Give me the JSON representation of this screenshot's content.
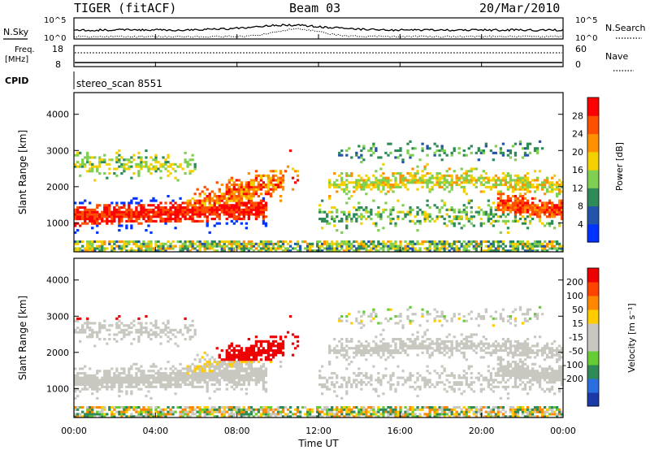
{
  "header": {
    "station": "TIGER (fitACF)",
    "beam": "Beam 03",
    "date": "20/Mar/2010"
  },
  "panels": {
    "nsky": {
      "left_label": "N.Sky",
      "right_label": "N.Search",
      "tick_top": "10^5",
      "tick_bottom": "10^0",
      "right_tick_top": "10^5",
      "right_tick_bottom": "10^0"
    },
    "freq": {
      "left_label_1": "Freq.",
      "left_label_2": "[MHz]",
      "right_label": "Nave",
      "left_tick_top": "18",
      "left_tick_bottom": "8",
      "right_tick_top": "60",
      "right_tick_bottom": "0"
    },
    "cpid": {
      "label": "CPID",
      "text": "stereo_scan 8551"
    }
  },
  "chart_data": [
    {
      "type": "heatmap",
      "quantity": "power",
      "ylabel": "Slant Range [km]",
      "ylim": [
        200,
        4600
      ],
      "yticks": [
        "1000",
        "2000",
        "3000",
        "4000"
      ],
      "xlim": [
        0,
        24
      ],
      "colorbar": {
        "label": "Power [dB]",
        "ticks": [
          "4",
          "8",
          "12",
          "16",
          "20",
          "24",
          "28"
        ],
        "colors": [
          "#0033ff",
          "#2255aa",
          "#2e8b57",
          "#7fcf50",
          "#f5d000",
          "#ff9000",
          "#ff5000",
          "#ff0000"
        ]
      }
    },
    {
      "type": "heatmap",
      "quantity": "velocity",
      "ylabel": "Slant Range [km]",
      "ylim": [
        200,
        4600
      ],
      "yticks": [
        "1000",
        "2000",
        "3000",
        "4000"
      ],
      "xlim": [
        0,
        24
      ],
      "colorbar": {
        "label": "Velocity [m s⁻¹]",
        "ticks": [
          "200",
          "100",
          "50",
          "15",
          "-15",
          "-50",
          "-100",
          "-200"
        ],
        "colors": [
          "#1a3aa8",
          "#2a6fe0",
          "#2e8b57",
          "#66cc33",
          "#c8c8c0",
          "#c8c8c0",
          "#ffcc00",
          "#ff8800",
          "#ff4400",
          "#ee0000"
        ]
      }
    }
  ],
  "xaxis": {
    "label": "Time UT",
    "ticks": [
      "00:00",
      "04:00",
      "08:00",
      "12:00",
      "16:00",
      "20:00",
      "00:00"
    ]
  }
}
